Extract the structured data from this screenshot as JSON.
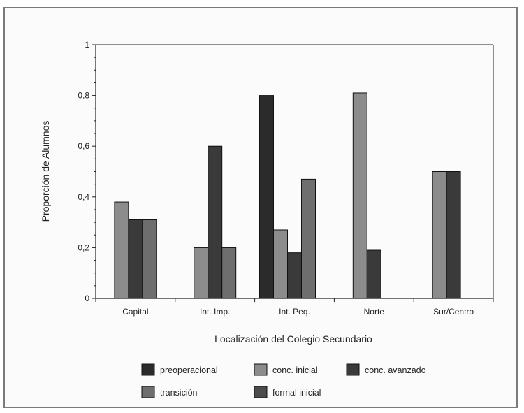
{
  "chart_data": {
    "type": "bar",
    "title": "",
    "xlabel": "Localización del Colegio Secundario",
    "ylabel": "Proporción de Alumnos",
    "ylim": [
      0,
      1
    ],
    "yticks": [
      {
        "value": 0,
        "label": "0"
      },
      {
        "value": 0.2,
        "label": "0,2"
      },
      {
        "value": 0.4,
        "label": "0,4"
      },
      {
        "value": 0.6,
        "label": "0,6"
      },
      {
        "value": 0.8,
        "label": "0,8"
      },
      {
        "value": 1,
        "label": "1"
      }
    ],
    "categories": [
      "Capital",
      "Int. Imp.",
      "Int. Peq.",
      "Norte",
      "Sur/Centro"
    ],
    "series": [
      {
        "name": "preoperacional",
        "color": "#2b2b2b",
        "values": [
          0,
          0,
          0.8,
          0,
          0
        ]
      },
      {
        "name": "conc. inicial",
        "color": "#8c8c8c",
        "values": [
          0.38,
          0.2,
          0.27,
          0.81,
          0.5
        ]
      },
      {
        "name": "conc. avanzado",
        "color": "#3a3a3a",
        "values": [
          0.31,
          0.6,
          0.18,
          0.19,
          0.5
        ]
      },
      {
        "name": "transición",
        "color": "#6e6e6e",
        "values": [
          0.31,
          0.2,
          0.47,
          0,
          0
        ]
      },
      {
        "name": "formal inicial",
        "color": "#4c4c4c",
        "values": [
          0,
          0,
          0,
          0,
          0
        ]
      }
    ],
    "grid": false,
    "legend_position": "bottom"
  }
}
